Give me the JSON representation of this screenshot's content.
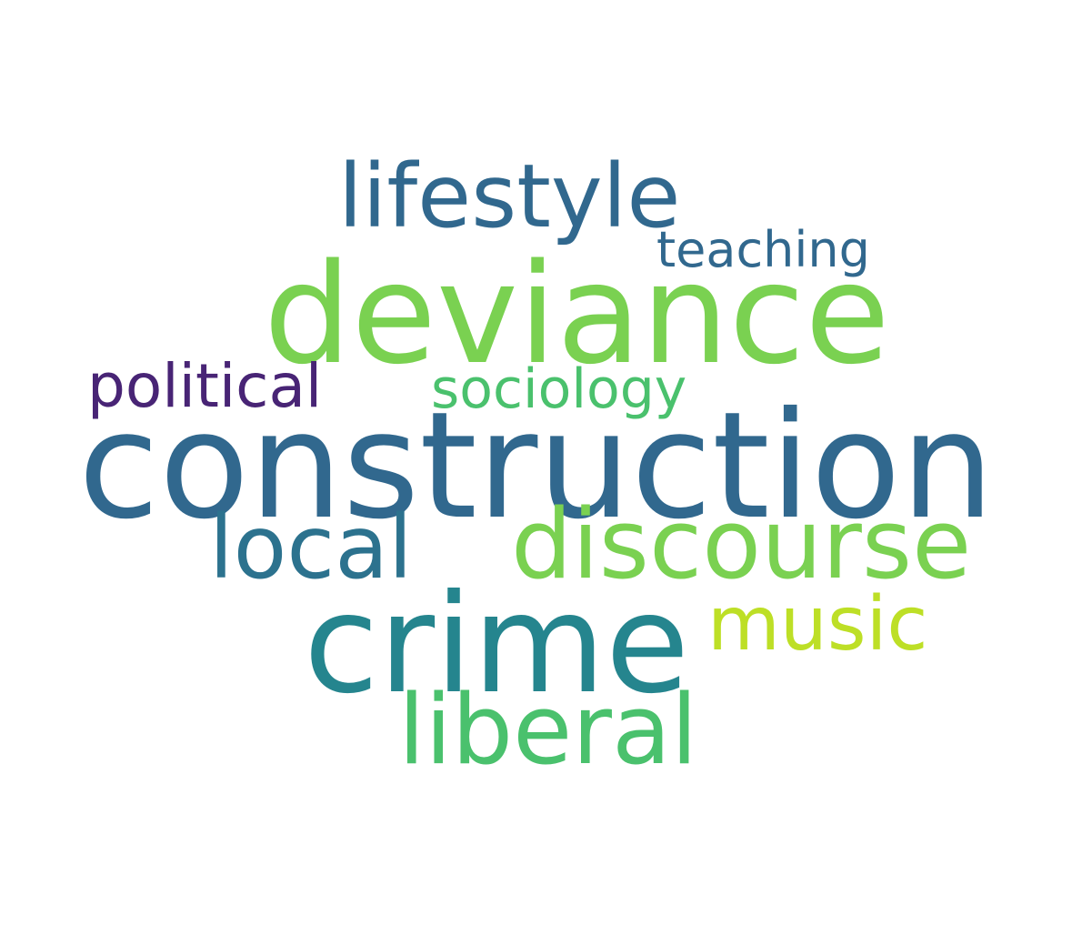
{
  "words": [
    {
      "id": "lifestyle",
      "text": "lifestyle",
      "color": "#31688e"
    },
    {
      "id": "teaching",
      "text": "teaching",
      "color": "#31688e"
    },
    {
      "id": "deviance",
      "text": "deviance",
      "color": "#7ad151"
    },
    {
      "id": "political",
      "text": "political",
      "color": "#482475"
    },
    {
      "id": "sociology",
      "text": "sociology",
      "color": "#4ac16d"
    },
    {
      "id": "construction",
      "text": "construction",
      "color": "#31688e"
    },
    {
      "id": "local",
      "text": "local",
      "color": "#2c728e"
    },
    {
      "id": "discourse",
      "text": "discourse",
      "color": "#7ad151"
    },
    {
      "id": "music",
      "text": "music",
      "color": "#bddf26"
    },
    {
      "id": "crime",
      "text": "crime",
      "color": "#25858e"
    },
    {
      "id": "liberal",
      "text": "liberal",
      "color": "#4ac16d"
    }
  ]
}
